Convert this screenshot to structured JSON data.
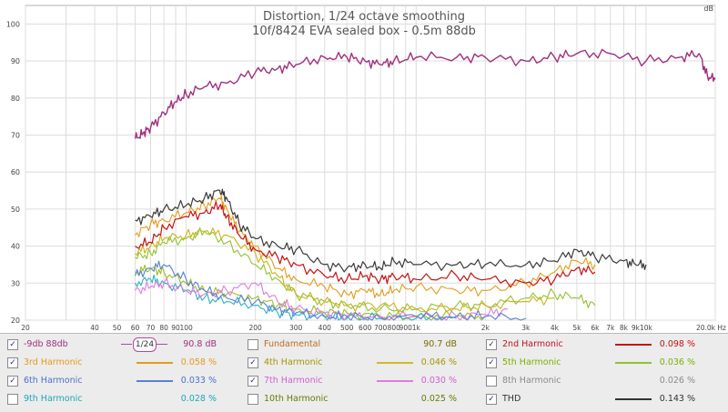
{
  "chart_data": {
    "type": "line",
    "title": "Distortion, 1/24 octave smoothing",
    "subtitle": "10f/8424 EVA sealed box - 0.5m 88db",
    "ylabel": "dB",
    "xscale": "log",
    "xlim": [
      20,
      20000
    ],
    "ylim": [
      20,
      105
    ],
    "yticks": [
      20,
      30,
      40,
      50,
      60,
      70,
      80,
      90,
      100
    ],
    "xticks": [
      {
        "v": 40,
        "l": "40"
      },
      {
        "v": 50,
        "l": "50"
      },
      {
        "v": 60,
        "l": "60"
      },
      {
        "v": 70,
        "l": "70"
      },
      {
        "v": 80,
        "l": "80"
      },
      {
        "v": 90,
        "l": "90"
      },
      {
        "v": 100,
        "l": "100"
      },
      {
        "v": 200,
        "l": "200"
      },
      {
        "v": 300,
        "l": "300"
      },
      {
        "v": 400,
        "l": "400"
      },
      {
        "v": 500,
        "l": "500"
      },
      {
        "v": 600,
        "l": "600"
      },
      {
        "v": 700,
        "l": "700"
      },
      {
        "v": 800,
        "l": "800"
      },
      {
        "v": 900,
        "l": "900"
      },
      {
        "v": 1000,
        "l": "1k"
      },
      {
        "v": 2000,
        "l": "2k"
      },
      {
        "v": 3000,
        "l": "3k"
      },
      {
        "v": 4000,
        "l": "4k"
      },
      {
        "v": 5000,
        "l": "5k"
      },
      {
        "v": 6000,
        "l": "6k"
      },
      {
        "v": 7000,
        "l": "7k"
      },
      {
        "v": 8000,
        "l": "8k"
      },
      {
        "v": 9000,
        "l": "9k"
      },
      {
        "v": 10000,
        "l": "10k"
      },
      {
        "v": 20000,
        "l": "20.0k Hz"
      }
    ],
    "first_tick_label": "20",
    "series": [
      {
        "name": "-9db 88db",
        "color": "#a0307f",
        "width": 1.4,
        "points": [
          [
            60,
            69
          ],
          [
            65,
            70.5
          ],
          [
            70,
            72
          ],
          [
            80,
            76
          ],
          [
            90,
            79
          ],
          [
            100,
            81
          ],
          [
            120,
            83
          ],
          [
            150,
            84
          ],
          [
            200,
            87
          ],
          [
            250,
            88
          ],
          [
            300,
            89
          ],
          [
            400,
            91
          ],
          [
            500,
            91
          ],
          [
            600,
            90
          ],
          [
            700,
            89
          ],
          [
            800,
            90
          ],
          [
            1000,
            91
          ],
          [
            1500,
            91
          ],
          [
            2000,
            91
          ],
          [
            3000,
            90
          ],
          [
            4000,
            91
          ],
          [
            5000,
            92
          ],
          [
            7000,
            92
          ],
          [
            10000,
            90
          ],
          [
            14000,
            91
          ],
          [
            17000,
            92
          ],
          [
            18500,
            86
          ],
          [
            20000,
            85
          ]
        ]
      },
      {
        "name": "THD",
        "color": "#3a3a3a",
        "width": 1.2,
        "points": [
          [
            60,
            47
          ],
          [
            70,
            48
          ],
          [
            80,
            50
          ],
          [
            100,
            51
          ],
          [
            120,
            53
          ],
          [
            140,
            55
          ],
          [
            150,
            53
          ],
          [
            170,
            46
          ],
          [
            200,
            42
          ],
          [
            250,
            40
          ],
          [
            300,
            39
          ],
          [
            400,
            35
          ],
          [
            500,
            34
          ],
          [
            600,
            35
          ],
          [
            700,
            34
          ],
          [
            800,
            36
          ],
          [
            1000,
            35
          ],
          [
            1500,
            35
          ],
          [
            2000,
            35
          ],
          [
            3000,
            35
          ],
          [
            4000,
            36
          ],
          [
            5000,
            39
          ],
          [
            6000,
            37
          ],
          [
            8000,
            36
          ],
          [
            9000,
            35
          ],
          [
            10000,
            35
          ]
        ]
      },
      {
        "name": "2nd Harmonic",
        "color": "#c41414",
        "width": 1.2,
        "points": [
          [
            60,
            40
          ],
          [
            70,
            41
          ],
          [
            80,
            45
          ],
          [
            100,
            48
          ],
          [
            120,
            49
          ],
          [
            140,
            51
          ],
          [
            150,
            48
          ],
          [
            170,
            43
          ],
          [
            200,
            39
          ],
          [
            250,
            37
          ],
          [
            300,
            35
          ],
          [
            400,
            32
          ],
          [
            500,
            31
          ],
          [
            600,
            32
          ],
          [
            700,
            31
          ],
          [
            800,
            32
          ],
          [
            1000,
            31
          ],
          [
            1500,
            32
          ],
          [
            2000,
            31
          ],
          [
            3000,
            30
          ],
          [
            4000,
            31
          ],
          [
            5000,
            34
          ],
          [
            6000,
            33
          ]
        ]
      },
      {
        "name": "3rd Harmonic",
        "color": "#e49a1a",
        "width": 1.1,
        "points": [
          [
            60,
            43
          ],
          [
            70,
            46
          ],
          [
            80,
            47
          ],
          [
            100,
            49
          ],
          [
            120,
            51
          ],
          [
            140,
            53
          ],
          [
            150,
            50
          ],
          [
            170,
            44
          ],
          [
            200,
            40
          ],
          [
            250,
            34
          ],
          [
            300,
            31
          ],
          [
            400,
            29
          ],
          [
            500,
            27
          ],
          [
            600,
            28
          ],
          [
            700,
            27
          ],
          [
            800,
            28
          ],
          [
            1000,
            29
          ],
          [
            1500,
            28
          ],
          [
            2000,
            28
          ],
          [
            3000,
            30
          ],
          [
            4000,
            33
          ],
          [
            5000,
            36
          ],
          [
            6000,
            35
          ]
        ]
      },
      {
        "name": "4th Harmonic",
        "color": "#c8b416",
        "width": 1.1,
        "points": [
          [
            60,
            38
          ],
          [
            70,
            40
          ],
          [
            80,
            42
          ],
          [
            100,
            43
          ],
          [
            120,
            44
          ],
          [
            150,
            43
          ],
          [
            200,
            38
          ],
          [
            250,
            32
          ],
          [
            300,
            27
          ],
          [
            400,
            25
          ],
          [
            500,
            24
          ],
          [
            700,
            24
          ],
          [
            1000,
            23
          ],
          [
            1500,
            23
          ],
          [
            2000,
            24
          ],
          [
            3000,
            25
          ],
          [
            4000,
            26
          ]
        ]
      },
      {
        "name": "5th Harmonic",
        "color": "#92c232",
        "width": 1.1,
        "points": [
          [
            60,
            37
          ],
          [
            70,
            38
          ],
          [
            80,
            41
          ],
          [
            100,
            42
          ],
          [
            120,
            44
          ],
          [
            150,
            41
          ],
          [
            200,
            35
          ],
          [
            250,
            31
          ],
          [
            300,
            27
          ],
          [
            400,
            25
          ],
          [
            500,
            24
          ],
          [
            700,
            23
          ],
          [
            1000,
            23
          ],
          [
            1500,
            24
          ],
          [
            2000,
            24
          ],
          [
            3000,
            26
          ],
          [
            4000,
            27
          ],
          [
            5000,
            26
          ],
          [
            6000,
            24
          ]
        ]
      },
      {
        "name": "6th Harmonic",
        "color": "#5a7fd2",
        "width": 1.1,
        "points": [
          [
            60,
            32
          ],
          [
            70,
            34
          ],
          [
            80,
            35
          ],
          [
            100,
            31
          ],
          [
            120,
            28
          ],
          [
            150,
            26
          ],
          [
            200,
            25
          ],
          [
            250,
            23
          ],
          [
            300,
            22
          ],
          [
            400,
            21
          ],
          [
            500,
            21
          ],
          [
            700,
            20.5
          ],
          [
            1000,
            21
          ],
          [
            1500,
            21
          ],
          [
            2000,
            21
          ],
          [
            3000,
            20.5
          ]
        ]
      },
      {
        "name": "7th Harmonic",
        "color": "#e07ae0",
        "width": 1.1,
        "points": [
          [
            60,
            28
          ],
          [
            70,
            29
          ],
          [
            80,
            30
          ],
          [
            100,
            28
          ],
          [
            120,
            27
          ],
          [
            150,
            28
          ],
          [
            200,
            30
          ],
          [
            250,
            25
          ],
          [
            300,
            23
          ],
          [
            400,
            22
          ],
          [
            500,
            21
          ],
          [
            700,
            21
          ],
          [
            1000,
            21
          ],
          [
            1500,
            21
          ],
          [
            2000,
            21.5
          ],
          [
            2500,
            23
          ]
        ]
      },
      {
        "name": "9th Harmonic",
        "color": "#2ab3c2",
        "width": 1.1,
        "points": [
          [
            60,
            30
          ],
          [
            70,
            31
          ],
          [
            80,
            30
          ],
          [
            100,
            28
          ],
          [
            120,
            26
          ],
          [
            150,
            25
          ],
          [
            200,
            24
          ],
          [
            250,
            22
          ],
          [
            300,
            21.5
          ],
          [
            400,
            21
          ],
          [
            500,
            20.5
          ],
          [
            700,
            20.5
          ],
          [
            1000,
            20.5
          ],
          [
            1500,
            20.5
          ]
        ]
      },
      {
        "name": "10th Harmonic",
        "color": "#9bbf1e",
        "width": 1.1,
        "points": [
          [
            60,
            33
          ],
          [
            70,
            34
          ],
          [
            80,
            33
          ],
          [
            100,
            30
          ],
          [
            120,
            28
          ],
          [
            150,
            27
          ],
          [
            200,
            26
          ],
          [
            250,
            24
          ],
          [
            300,
            23
          ],
          [
            400,
            22
          ],
          [
            500,
            22
          ],
          [
            700,
            21
          ],
          [
            1000,
            21
          ],
          [
            1500,
            21
          ],
          [
            2000,
            21
          ]
        ]
      }
    ]
  },
  "legend": [
    {
      "key": "m9db",
      "label": "-9db 88db",
      "checked": true,
      "check": "✓",
      "color": "#a0307f",
      "value": "90.8 dB",
      "smoothing": "1/24"
    },
    {
      "key": "fund",
      "label": "Fundamental",
      "checked": false,
      "check": "",
      "color": "#c46a22",
      "value": "90.7 dB"
    },
    {
      "key": "h2",
      "label": "2nd Harmonic",
      "checked": true,
      "check": "✓",
      "color": "#c41414",
      "value": "0.098 %"
    },
    {
      "key": "h3",
      "label": "3rd Harmonic",
      "checked": true,
      "check": "✓",
      "color": "#e49a1a",
      "value": "0.058 %"
    },
    {
      "key": "h4",
      "label": "4th Harmonic",
      "checked": true,
      "check": "✓",
      "color": "#a89400",
      "value": "0.046 %"
    },
    {
      "key": "h5",
      "label": "5th Harmonic",
      "checked": true,
      "check": "✓",
      "color": "#7ab000",
      "value": "0.036 %"
    },
    {
      "key": "h6",
      "label": "6th Harmonic",
      "checked": true,
      "check": "✓",
      "color": "#4a72c8",
      "value": "0.033 %"
    },
    {
      "key": "h7",
      "label": "7th Harmonic",
      "checked": true,
      "check": "✓",
      "color": "#d060d0",
      "value": "0.030 %"
    },
    {
      "key": "h8",
      "label": "8th Harmonic",
      "checked": false,
      "check": "",
      "color": "#8a8a8a",
      "value": "0.026 %"
    },
    {
      "key": "h9",
      "label": "9th Harmonic",
      "checked": false,
      "check": "",
      "color": "#1aa8b8",
      "value": "0.028 %"
    },
    {
      "key": "h10",
      "label": "10th Harmonic",
      "checked": false,
      "check": "",
      "color": "#6a7a00",
      "value": "0.025 %"
    },
    {
      "key": "thd",
      "label": "THD",
      "checked": true,
      "check": "✓",
      "color": "#333333",
      "value": "0.143 %"
    }
  ],
  "swatch_colors": {
    "m9db": "#a0307f",
    "h2": "#c41414",
    "h3": "#e49a1a",
    "h4": "#d4b828",
    "h5": "#92c232",
    "h6": "#5a7fd2",
    "h7": "#e07ae0",
    "thd": "#333333"
  }
}
